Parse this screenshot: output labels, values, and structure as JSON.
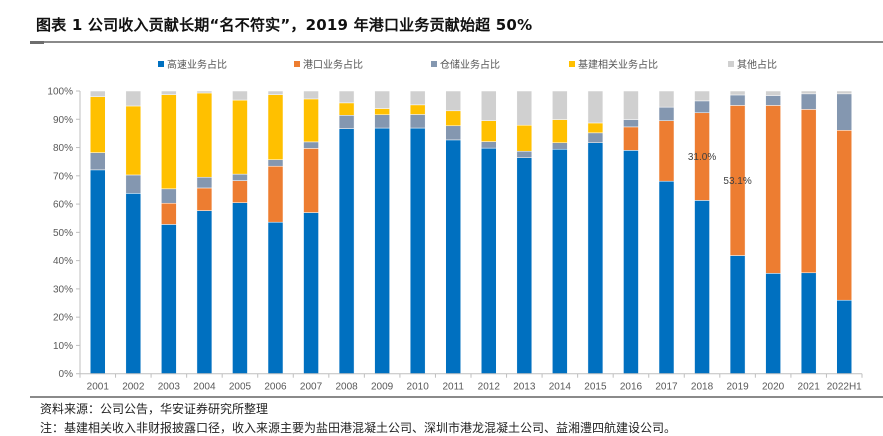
{
  "header": {
    "title": "图表 1 公司收入贡献长期“名不符实”，2019 年港口业务贡献始超 50%"
  },
  "footer": {
    "source": "资料来源：公司公告，华安证券研究所整理",
    "note": "注：基建相关收入非财报披露口径，收入来源主要为盐田港混凝土公司、深圳市港龙混凝土公司、益湘澧四航建设公司。"
  },
  "chart_data": {
    "type": "bar",
    "stacked": true,
    "percent_stacked": true,
    "title": "",
    "xlabel": "",
    "ylabel": "",
    "ylim": [
      0,
      100
    ],
    "yticks": [
      "0%",
      "10%",
      "20%",
      "30%",
      "40%",
      "50%",
      "60%",
      "70%",
      "80%",
      "90%",
      "100%"
    ],
    "grid": false,
    "legend_position": "top",
    "categories": [
      "2001",
      "2002",
      "2003",
      "2004",
      "2005",
      "2006",
      "2007",
      "2008",
      "2009",
      "2010",
      "2011",
      "2012",
      "2013",
      "2014",
      "2015",
      "2016",
      "2017",
      "2018",
      "2019",
      "2020",
      "2021",
      "2022H1"
    ],
    "series": [
      {
        "name": "高速业务占比",
        "color": "#0070C0",
        "values": [
          72.1,
          63.8,
          52.8,
          57.7,
          60.5,
          53.6,
          57.0,
          86.7,
          86.9,
          86.9,
          82.7,
          79.8,
          76.4,
          79.4,
          81.7,
          79.0,
          68.1,
          61.3,
          41.8,
          35.5,
          35.7,
          26.0
        ]
      },
      {
        "name": "港口业务占比",
        "color": "#ED7D31",
        "values": [
          0,
          0,
          7.5,
          8.0,
          7.8,
          19.8,
          22.7,
          0,
          0,
          0,
          0,
          0,
          0,
          0,
          0,
          8.3,
          21.4,
          31.0,
          53.1,
          59.4,
          57.8,
          60.1
        ]
      },
      {
        "name": "仓储业务占比",
        "color": "#8497B0",
        "values": [
          6.1,
          6.5,
          5.1,
          3.8,
          2.3,
          2.3,
          2.3,
          4.7,
          4.7,
          4.8,
          5.0,
          2.3,
          2.3,
          2.3,
          3.5,
          2.6,
          4.8,
          4.2,
          3.7,
          3.5,
          5.5,
          12.9
        ]
      },
      {
        "name": "基建相关业务占比",
        "color": "#FFC000",
        "values": [
          19.8,
          24.4,
          33.3,
          29.8,
          26.2,
          23.0,
          15.2,
          4.4,
          2.2,
          3.4,
          5.3,
          7.4,
          9.2,
          8.2,
          3.5,
          0,
          0,
          0,
          0,
          0,
          0,
          0
        ]
      },
      {
        "name": "其他占比",
        "color": "#D0D0D0",
        "values": [
          2.0,
          5.3,
          1.3,
          0.7,
          3.2,
          1.3,
          2.8,
          4.2,
          6.2,
          4.9,
          7.0,
          10.5,
          12.1,
          10.1,
          11.3,
          10.1,
          5.7,
          3.5,
          1.4,
          1.6,
          1.0,
          1.0
        ]
      }
    ],
    "annotations": [
      {
        "text": "31.0%",
        "category": "2018",
        "series": "港口业务占比"
      },
      {
        "text": "53.1%",
        "category": "2019",
        "series": "港口业务占比"
      }
    ]
  }
}
